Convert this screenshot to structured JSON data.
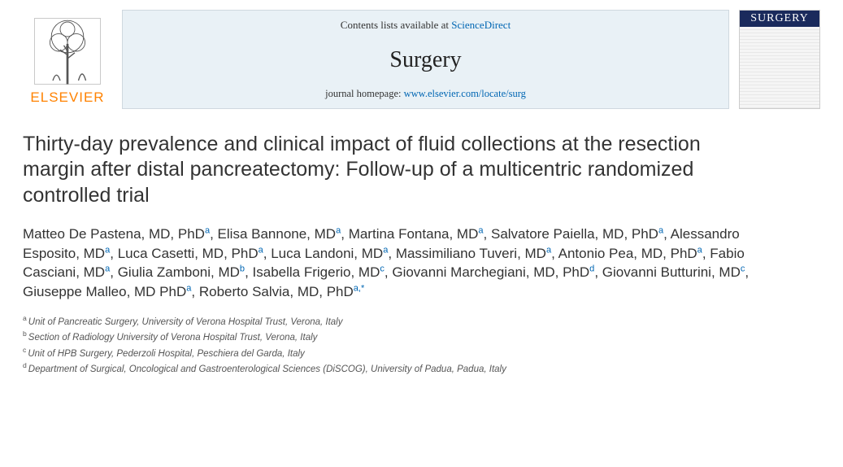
{
  "banner": {
    "publisher_name": "ELSEVIER",
    "contents_prefix": "Contents lists available at ",
    "contents_link": "ScienceDirect",
    "journal_name": "Surgery",
    "homepage_prefix": "journal homepage: ",
    "homepage_link": "www.elsevier.com/locate/surg",
    "cover_title": "SURGERY"
  },
  "title": "Thirty-day prevalence and clinical impact of fluid collections at the resection margin after distal pancreatectomy: Follow-up of a multicentric randomized controlled trial",
  "authors": [
    {
      "name": "Matteo De Pastena, MD, PhD",
      "aff": "a"
    },
    {
      "name": "Elisa Bannone, MD",
      "aff": "a"
    },
    {
      "name": "Martina Fontana, MD",
      "aff": "a"
    },
    {
      "name": "Salvatore Paiella, MD, PhD",
      "aff": "a"
    },
    {
      "name": "Alessandro Esposito, MD",
      "aff": "a"
    },
    {
      "name": "Luca Casetti, MD, PhD",
      "aff": "a"
    },
    {
      "name": "Luca Landoni, MD",
      "aff": "a"
    },
    {
      "name": "Massimiliano Tuveri, MD",
      "aff": "a"
    },
    {
      "name": "Antonio Pea, MD, PhD",
      "aff": "a"
    },
    {
      "name": "Fabio Casciani, MD",
      "aff": "a"
    },
    {
      "name": "Giulia Zamboni, MD",
      "aff": "b"
    },
    {
      "name": "Isabella Frigerio, MD",
      "aff": "c"
    },
    {
      "name": "Giovanni Marchegiani, MD, PhD",
      "aff": "d"
    },
    {
      "name": "Giovanni Butturini, MD",
      "aff": "c"
    },
    {
      "name": "Giuseppe Malleo, MD PhD",
      "aff": "a"
    },
    {
      "name": "Roberto Salvia, MD, PhD",
      "aff": "a,*"
    }
  ],
  "affiliations": [
    {
      "label": "a",
      "text": "Unit of Pancreatic Surgery, University of Verona Hospital Trust, Verona, Italy"
    },
    {
      "label": "b",
      "text": "Section of Radiology University of Verona Hospital Trust, Verona, Italy"
    },
    {
      "label": "c",
      "text": "Unit of HPB Surgery, Pederzoli Hospital, Peschiera del Garda, Italy"
    },
    {
      "label": "d",
      "text": "Department of Surgical, Oncological and Gastroenterological Sciences (DiSCOG), University of Padua, Padua, Italy"
    }
  ],
  "colors": {
    "link": "#0066b3",
    "publisher_orange": "#ff8200",
    "banner_bg": "#e9f1f6",
    "cover_navy": "#1a2a5c"
  }
}
